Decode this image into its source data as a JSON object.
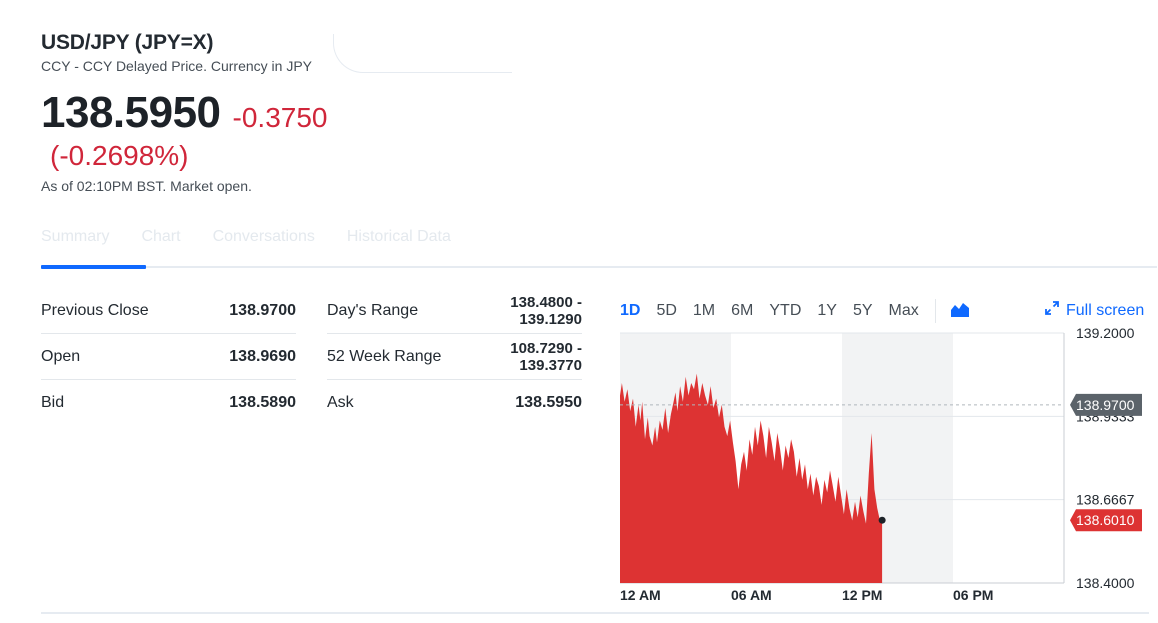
{
  "quote": {
    "title": "USD/JPY (JPY=X)",
    "subtitle": "CCY - CCY Delayed Price. Currency in JPY",
    "price": "138.5950",
    "change": "-0.3750",
    "change_pct": "(-0.2698%)",
    "as_of": "As of 02:10PM BST. Market open."
  },
  "tabs": [
    "Summary",
    "Chart",
    "Conversations",
    "Historical Data"
  ],
  "stats": {
    "left": [
      {
        "label": "Previous Close",
        "value": "138.9700"
      },
      {
        "label": "Open",
        "value": "138.9690"
      },
      {
        "label": "Bid",
        "value": "138.5890"
      }
    ],
    "right": [
      {
        "label": "Day's Range",
        "value1": "138.4800 -",
        "value2": "139.1290"
      },
      {
        "label": "52 Week Range",
        "value1": "108.7290 -",
        "value2": "139.3770"
      },
      {
        "label": "Ask",
        "value1": "138.5950",
        "value2": ""
      }
    ]
  },
  "chart_controls": {
    "ranges": [
      "1D",
      "5D",
      "1M",
      "6M",
      "YTD",
      "1Y",
      "5Y",
      "Max"
    ],
    "active": "1D",
    "chart_type_icon": "area-chart-icon",
    "fullscreen_label": "Full screen",
    "fullscreen_icon": "expand-arrows-icon"
  },
  "colors": {
    "accent": "#0f69ff",
    "negative": "#d0263a",
    "area_fill": "#dd3333",
    "prev_close_tag": "#5b636a"
  },
  "chart_data": {
    "type": "area",
    "x_ticks": [
      "12 AM",
      "06 AM",
      "12 PM",
      "06 PM"
    ],
    "y_ticks": [
      "139.2000",
      "138.9333",
      "138.6667",
      "138.4000"
    ],
    "ylim": [
      138.4,
      139.2
    ],
    "x_range_hours": [
      0,
      24
    ],
    "previous_close": {
      "value": 138.97,
      "label": "138.9700"
    },
    "current": {
      "value": 138.601,
      "label": "138.6010"
    },
    "series": [
      {
        "x": [
          0,
          0.1,
          0.25,
          0.4,
          0.55,
          0.7,
          0.85,
          1.0,
          1.1,
          1.2,
          1.35,
          1.5,
          1.6,
          1.75,
          1.9,
          2.0,
          2.15,
          2.3,
          2.45,
          2.6,
          2.75,
          2.9,
          3.0,
          3.1,
          3.25,
          3.4,
          3.55,
          3.7,
          3.85,
          4.0,
          4.15,
          4.3,
          4.45,
          4.6,
          4.75,
          4.9,
          5.05,
          5.2,
          5.35,
          5.5,
          5.65,
          5.8,
          5.95,
          6.1,
          6.25,
          6.4,
          6.55,
          6.7,
          6.85,
          7.0,
          7.15,
          7.3,
          7.45,
          7.6,
          7.75,
          7.9,
          8.05,
          8.2,
          8.35,
          8.5,
          8.65,
          8.8,
          8.95,
          9.1,
          9.25,
          9.4,
          9.55,
          9.7,
          9.85,
          10.0,
          10.15,
          10.3,
          10.45,
          10.6,
          10.75,
          10.9,
          11.05,
          11.2,
          11.35,
          11.5,
          11.65,
          11.8,
          11.95,
          12.1,
          12.25,
          12.4,
          12.55,
          12.7,
          12.85,
          13.0,
          13.15,
          13.3,
          13.45,
          13.6,
          13.75,
          13.9,
          14.05,
          14.17
        ],
        "y": [
          139.0,
          139.04,
          138.98,
          139.02,
          138.95,
          138.99,
          138.9,
          138.97,
          138.92,
          138.98,
          138.86,
          138.93,
          138.87,
          138.84,
          138.9,
          138.85,
          138.92,
          138.89,
          138.96,
          138.88,
          138.94,
          138.98,
          139.01,
          138.95,
          139.03,
          138.98,
          139.06,
          139.0,
          139.04,
          139.02,
          139.07,
          138.99,
          139.04,
          139.0,
          138.97,
          139.03,
          138.96,
          138.99,
          138.93,
          138.97,
          138.9,
          138.87,
          138.92,
          138.85,
          138.79,
          138.7,
          138.78,
          138.82,
          138.76,
          138.86,
          138.81,
          138.9,
          138.84,
          138.92,
          138.87,
          138.8,
          138.9,
          138.85,
          138.79,
          138.88,
          138.83,
          138.76,
          138.84,
          138.8,
          138.86,
          138.82,
          138.74,
          138.8,
          138.73,
          138.78,
          138.7,
          138.75,
          138.68,
          138.74,
          138.71,
          138.65,
          138.73,
          138.69,
          138.76,
          138.71,
          138.66,
          138.74,
          138.68,
          138.62,
          138.7,
          138.64,
          138.6,
          138.66,
          138.61,
          138.68,
          138.63,
          138.59,
          138.75,
          138.88,
          138.7,
          138.64,
          138.6,
          138.601
        ]
      }
    ]
  }
}
